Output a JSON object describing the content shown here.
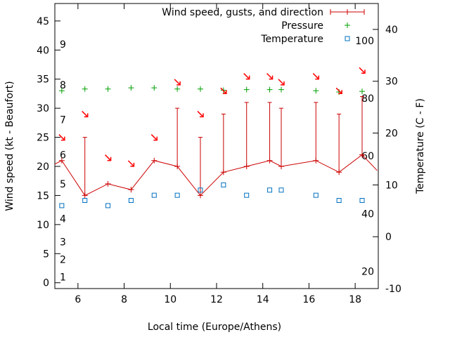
{
  "chart_data": {
    "type": "line",
    "xlabel": "Local time (Europe/Athens)",
    "ylabel_left": "Wind speed (kt - Beaufort)",
    "ylabel_right": "Temperature (C - F)",
    "xlim": [
      5,
      19
    ],
    "ylim_left": [
      -1,
      48
    ],
    "ylim_right": [
      -10,
      45
    ],
    "x_ticks": [
      {
        "value": 6,
        "label": "6"
      },
      {
        "value": 8,
        "label": "8"
      },
      {
        "value": 10,
        "label": "10"
      },
      {
        "value": 12,
        "label": "12"
      },
      {
        "value": 14,
        "label": "14"
      },
      {
        "value": 16,
        "label": "16"
      },
      {
        "value": 18,
        "label": "18"
      }
    ],
    "y_left_ticks": [
      {
        "value": 0,
        "label": "0"
      },
      {
        "value": 5,
        "label": "5"
      },
      {
        "value": 10,
        "label": "10"
      },
      {
        "value": 15,
        "label": "15"
      },
      {
        "value": 20,
        "label": "20"
      },
      {
        "value": 25,
        "label": "25"
      },
      {
        "value": 30,
        "label": "30"
      },
      {
        "value": 35,
        "label": "35"
      },
      {
        "value": 40,
        "label": "40"
      },
      {
        "value": 45,
        "label": "45"
      }
    ],
    "y_right_ticks": [
      {
        "value": -10,
        "label": "-10"
      },
      {
        "value": 0,
        "label": "0"
      },
      {
        "value": 10,
        "label": "10"
      },
      {
        "value": 20,
        "label": "20"
      },
      {
        "value": 30,
        "label": "30"
      },
      {
        "value": 40,
        "label": "40"
      }
    ],
    "beaufort_labels": [
      {
        "value": 1,
        "label": "1"
      },
      {
        "value": 4,
        "label": "2"
      },
      {
        "value": 7,
        "label": "3"
      },
      {
        "value": 11,
        "label": "4"
      },
      {
        "value": 17,
        "label": "5"
      },
      {
        "value": 22,
        "label": "6"
      },
      {
        "value": 28,
        "label": "7"
      },
      {
        "value": 34,
        "label": "8"
      },
      {
        "value": 41,
        "label": "9"
      }
    ],
    "fahrenheit_labels": [
      {
        "value": -6.7,
        "label": "20"
      },
      {
        "value": 4.4,
        "label": "40"
      },
      {
        "value": 15.6,
        "label": "60"
      },
      {
        "value": 26.7,
        "label": "80"
      },
      {
        "value": 37.8,
        "label": "100"
      }
    ],
    "legend": [
      {
        "label": "Wind speed, gusts, and direction",
        "key": "wind"
      },
      {
        "label": "Pressure",
        "key": "pressure"
      },
      {
        "label": "Temperature",
        "key": "temperature"
      }
    ],
    "colors": {
      "wind": "#cc0000",
      "pressure": "#00a000",
      "temperature": "#0070c0",
      "arrow": "#ff0000"
    },
    "series": {
      "wind": {
        "x": [
          5.3,
          6.3,
          7.3,
          8.3,
          9.3,
          10.3,
          11.3,
          12.3,
          13.3,
          14.3,
          14.8,
          16.3,
          17.3,
          18.3
        ],
        "speed": [
          21,
          15,
          17,
          16,
          21,
          20,
          15,
          19,
          20,
          21,
          20,
          21,
          19,
          22
        ],
        "gust": [
          21,
          25,
          17,
          16,
          21,
          30,
          25,
          29,
          31,
          31,
          30,
          31,
          29,
          32
        ],
        "lead_in": [
          4.95,
          20.3
        ],
        "lead_out": [
          18.95,
          19.3
        ]
      },
      "pressure": {
        "x": [
          5.3,
          6.3,
          7.3,
          8.3,
          9.3,
          10.3,
          11.3,
          12.3,
          13.3,
          14.3,
          14.8,
          16.3,
          17.3,
          18.3
        ],
        "y": [
          33.0,
          33.3,
          33.3,
          33.5,
          33.5,
          33.3,
          33.3,
          33.1,
          33.2,
          33.2,
          33.2,
          33.0,
          32.8,
          32.9
        ]
      },
      "temperature": {
        "x": [
          5.3,
          6.3,
          7.3,
          8.3,
          9.3,
          10.3,
          11.3,
          12.3,
          13.3,
          14.3,
          14.8,
          16.3,
          17.3,
          18.3
        ],
        "y": [
          6,
          7,
          6,
          7,
          8,
          8,
          9,
          10,
          8,
          9,
          9,
          8,
          7,
          7
        ]
      },
      "direction": {
        "x": [
          5.3,
          6.3,
          7.3,
          8.3,
          9.3,
          10.3,
          11.3,
          12.3,
          13.3,
          14.3,
          14.8,
          16.3,
          17.3,
          18.3
        ],
        "y": [
          25.0,
          29.0,
          21.5,
          20.5,
          25.0,
          34.5,
          29.0,
          33.0,
          35.5,
          35.5,
          34.5,
          35.5,
          33.0,
          36.5
        ]
      }
    }
  }
}
